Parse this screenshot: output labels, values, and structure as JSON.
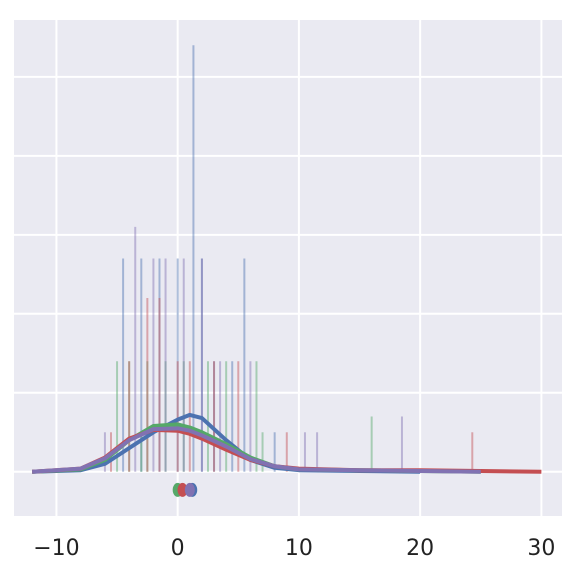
{
  "chart_data": {
    "type": "kde",
    "xlim": [
      -13.5,
      31.7
    ],
    "ylim": [
      -0.056,
      0.572
    ],
    "xticks": [
      {
        "value": -10,
        "label": "−10"
      },
      0,
      10,
      20,
      30
    ],
    "yticks": [
      0,
      0.1,
      0.2,
      0.3,
      0.4,
      0.5
    ],
    "ytick_labels": false,
    "grid": true,
    "background": "#eaeaf2",
    "series": [
      {
        "color": "#4c72b0",
        "x": [
          -12,
          -8,
          -6,
          -4,
          -2,
          0,
          1,
          2,
          4,
          6,
          8,
          10,
          15,
          20
        ],
        "values": [
          0,
          0.002,
          0.01,
          0.03,
          0.05,
          0.066,
          0.072,
          0.068,
          0.04,
          0.015,
          0.005,
          0.002,
          0.001,
          0
        ],
        "spikes": {
          "x": [
            -4.5,
            -3,
            -1.5,
            0,
            1.3,
            2,
            3,
            4.5,
            5.5,
            8
          ],
          "heights": [
            0.27,
            0.27,
            0.27,
            0.27,
            0.54,
            0.27,
            0.14,
            0.14,
            0.27,
            0.05
          ]
        },
        "mean_point": {
          "x": 1.2,
          "y": -0.023
        }
      },
      {
        "color": "#55a868",
        "x": [
          -12,
          -8,
          -6,
          -4,
          -2,
          0,
          1,
          2,
          4,
          6,
          8,
          10,
          15,
          20,
          25
        ],
        "values": [
          0,
          0.003,
          0.015,
          0.04,
          0.058,
          0.06,
          0.056,
          0.05,
          0.035,
          0.018,
          0.007,
          0.003,
          0.002,
          0.001,
          0
        ],
        "spikes": {
          "x": [
            -5,
            -4,
            -3,
            -2.5,
            -1,
            0.5,
            2.5,
            4,
            6.5,
            7,
            16
          ],
          "heights": [
            0.14,
            0.14,
            0.05,
            0.14,
            0.14,
            0.14,
            0.14,
            0.14,
            0.14,
            0.05,
            0.07
          ]
        },
        "mean_point": {
          "x": 0,
          "y": -0.023
        }
      },
      {
        "color": "#c44e52",
        "x": [
          -12,
          -8,
          -6,
          -4,
          -2,
          0,
          1,
          2,
          4,
          6,
          8,
          10,
          15,
          20,
          25,
          30
        ],
        "values": [
          0,
          0.004,
          0.018,
          0.042,
          0.053,
          0.052,
          0.048,
          0.042,
          0.028,
          0.015,
          0.007,
          0.004,
          0.002,
          0.002,
          0.001,
          0
        ],
        "spikes": {
          "x": [
            -5.5,
            -4,
            -2.5,
            -1.5,
            0,
            1,
            3,
            5,
            9,
            24.3
          ],
          "heights": [
            0.05,
            0.14,
            0.22,
            0.22,
            0.14,
            0.14,
            0.14,
            0.14,
            0.05,
            0.05
          ]
        },
        "mean_point": {
          "x": 0.4,
          "y": -0.023
        }
      },
      {
        "color": "#8172b2",
        "x": [
          -12,
          -8,
          -6,
          -4,
          -2,
          0,
          1,
          2,
          4,
          6,
          8,
          10,
          15,
          20,
          25
        ],
        "values": [
          0,
          0.004,
          0.017,
          0.04,
          0.054,
          0.055,
          0.052,
          0.046,
          0.032,
          0.016,
          0.007,
          0.003,
          0.002,
          0.001,
          0
        ],
        "spikes": {
          "x": [
            -6,
            -3.5,
            -2,
            -1,
            0.5,
            2,
            3.5,
            6,
            10.5,
            11.5,
            18.5
          ],
          "heights": [
            0.05,
            0.31,
            0.27,
            0.27,
            0.27,
            0.27,
            0.14,
            0.14,
            0.05,
            0.05,
            0.07
          ]
        },
        "mean_point": {
          "x": 1.0,
          "y": -0.023
        }
      }
    ]
  }
}
